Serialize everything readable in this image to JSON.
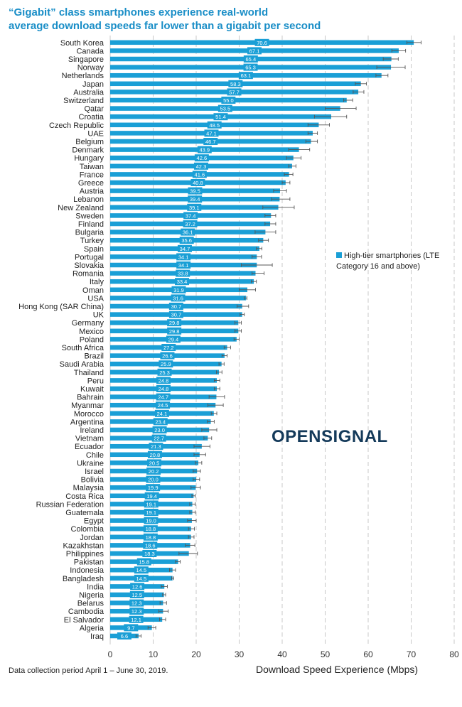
{
  "chart_data": {
    "type": "bar",
    "orientation": "horizontal",
    "title_lines": [
      "“Gigabit” class smartphones experience real-world",
      "average download speeds far lower than a gigabit per second"
    ],
    "xlabel": "Download Speed Experience (Mbps)",
    "xlim": [
      0,
      80
    ],
    "xticks": [
      0,
      10,
      20,
      30,
      40,
      50,
      60,
      70,
      80
    ],
    "grid": "vertical dashed",
    "legend": {
      "label": "High-tier smartphones (LTE Category 16 and above)",
      "position": "right"
    },
    "color": "#1a9fd6",
    "categories": [
      "South Korea",
      "Canada",
      "Singapore",
      "Norway",
      "Netherlands",
      "Japan",
      "Australia",
      "Switzerland",
      "Qatar",
      "Croatia",
      "Czech Republic",
      "UAE",
      "Belgium",
      "Denmark",
      "Hungary",
      "Taiwan",
      "France",
      "Greece",
      "Austria",
      "Lebanon",
      "New Zealand",
      "Sweden",
      "Finland",
      "Bulgaria",
      "Turkey",
      "Spain",
      "Portugal",
      "Slovakia",
      "Romania",
      "Italy",
      "Oman",
      "USA",
      "Hong Kong (SAR China)",
      "UK",
      "Germany",
      "Mexico",
      "Poland",
      "South Africa",
      "Brazil",
      "Saudi Arabia",
      "Thailand",
      "Peru",
      "Kuwait",
      "Bahrain",
      "Myanmar",
      "Morocco",
      "Argentina",
      "Ireland",
      "Vietnam",
      "Ecuador",
      "Chile",
      "Ukraine",
      "Israel",
      "Bolivia",
      "Malaysia",
      "Costa Rica",
      "Russian Federation",
      "Guatemala",
      "Egypt",
      "Colombia",
      "Jordan",
      "Kazakhstan",
      "Philippines",
      "Pakistan",
      "Indonesia",
      "Bangladesh",
      "India",
      "Nigeria",
      "Belarus",
      "Cambodia",
      "El Salvador",
      "Algeria",
      "Iraq"
    ],
    "values": [
      70.6,
      67.1,
      65.4,
      65.3,
      63.1,
      58.3,
      57.7,
      55.0,
      53.5,
      51.4,
      48.5,
      47.1,
      46.7,
      43.9,
      42.6,
      42.3,
      41.6,
      40.8,
      39.5,
      39.4,
      39.1,
      37.4,
      37.2,
      36.1,
      35.6,
      34.7,
      34.1,
      34.1,
      33.8,
      33.4,
      31.9,
      31.6,
      30.7,
      30.7,
      29.8,
      29.8,
      29.4,
      27.2,
      26.6,
      25.9,
      25.3,
      24.8,
      24.8,
      24.7,
      24.5,
      24.1,
      23.4,
      23.0,
      22.7,
      21.3,
      20.8,
      20.5,
      20.2,
      20.0,
      19.9,
      19.4,
      19.1,
      19.1,
      19.0,
      18.8,
      18.8,
      18.6,
      18.3,
      15.8,
      14.5,
      14.5,
      12.6,
      12.5,
      12.3,
      12.3,
      12.1,
      9.7,
      6.6
    ],
    "error_low": [
      69.0,
      65.5,
      63.5,
      62.0,
      61.8,
      57.0,
      56.5,
      54.3,
      50.0,
      47.5,
      46.0,
      46.0,
      45.5,
      41.5,
      41.0,
      41.5,
      40.5,
      40.0,
      38.0,
      37.5,
      35.5,
      36.0,
      36.0,
      33.7,
      34.5,
      34.0,
      33.0,
      30.5,
      33.0,
      32.8,
      30.0,
      31.2,
      29.5,
      30.2,
      29.0,
      29.0,
      28.8,
      26.5,
      26.0,
      25.3,
      24.7,
      24.2,
      24.2,
      23.0,
      22.7,
      23.5,
      22.6,
      21.3,
      21.8,
      19.5,
      19.5,
      19.8,
      19.3,
      19.3,
      18.8,
      19.0,
      18.5,
      18.5,
      18.0,
      18.2,
      18.2,
      17.5,
      16.0,
      15.2,
      13.8,
      14.3,
      11.9,
      12.2,
      11.6,
      11.3,
      11.5,
      8.8,
      6.0
    ],
    "error_high": [
      72.3,
      68.7,
      67.0,
      68.6,
      64.6,
      59.6,
      59.0,
      56.4,
      57.2,
      55.0,
      51.0,
      48.2,
      48.2,
      46.4,
      44.4,
      43.2,
      42.5,
      41.8,
      41.0,
      41.8,
      42.8,
      38.5,
      38.5,
      38.5,
      36.8,
      35.3,
      35.2,
      37.7,
      35.8,
      34.0,
      33.8,
      31.8,
      32.2,
      31.2,
      30.5,
      30.5,
      30.0,
      28.0,
      27.2,
      26.5,
      26.0,
      25.5,
      25.5,
      26.6,
      26.3,
      24.8,
      24.2,
      24.8,
      23.6,
      23.2,
      22.2,
      21.3,
      21.0,
      20.8,
      21.0,
      19.8,
      19.8,
      19.8,
      20.0,
      19.6,
      19.5,
      19.7,
      20.3,
      16.3,
      15.2,
      14.8,
      13.3,
      12.9,
      13.1,
      13.5,
      12.9,
      10.6,
      7.2
    ]
  },
  "footnote": "Data collection period April 1 – June 30, 2019.",
  "logo_text": "OPENSIGNAL"
}
